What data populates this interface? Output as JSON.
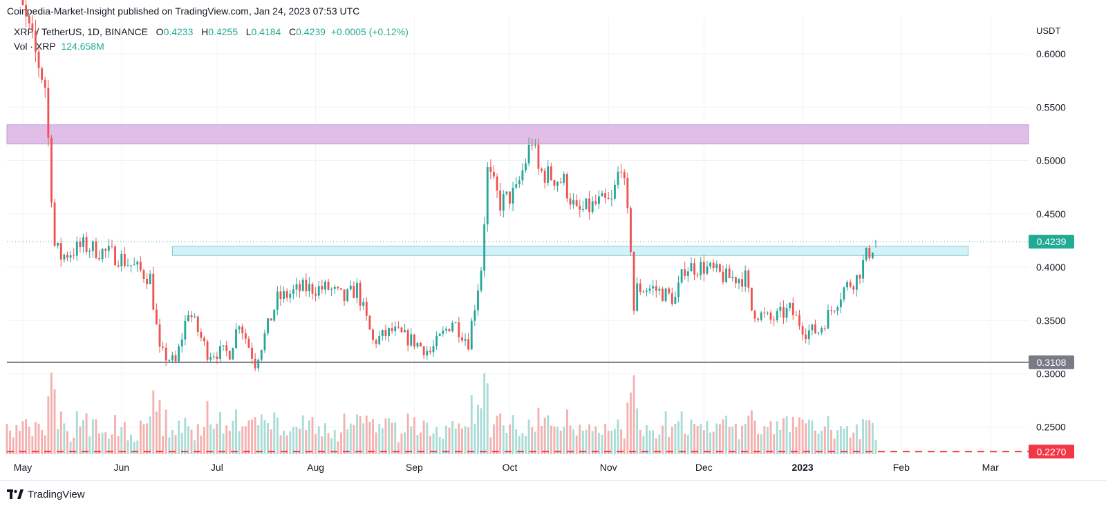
{
  "header": {
    "publisher": "Coinpedia-Market-Insight published on TradingView.com, Jan 24, 2023 07:53 UTC"
  },
  "legend": {
    "symbol": "XRP / TetherUS, 1D, BINANCE",
    "o_label": "O",
    "o_value": "0.4233",
    "h_label": "H",
    "h_value": "0.4255",
    "l_label": "L",
    "l_value": "0.4184",
    "c_label": "C",
    "c_value": "0.4239",
    "change": "+0.0005 (+0.12%)",
    "vol_label": "Vol · XRP",
    "vol_value": "124.658M"
  },
  "footer": {
    "brand": "TradingView",
    "logo_icon": "tradingview-logo-icon"
  },
  "colors": {
    "up": "#26a69a",
    "down": "#ef5350",
    "vol_up": "#a8dcd6",
    "vol_down": "#f5b0ae",
    "resistance_zone": "#e1bee7",
    "support_zone": "#d3f1f8",
    "support_line": "#787b86",
    "dashed_line": "#f23645",
    "grid": "#f0f3fa"
  },
  "chart_data": {
    "type": "candlestick",
    "title": "XRP / TetherUS, 1D, BINANCE",
    "y_unit": "USDT",
    "ylim": [
      0.222,
      0.635
    ],
    "y_ticks": [
      "0.6000",
      "0.5500",
      "0.5000",
      "0.4500",
      "0.4000",
      "0.3500",
      "0.3000",
      "0.2500"
    ],
    "x_range": [
      "2022-04-26",
      "2023-03-13"
    ],
    "x_ticks": [
      {
        "label": "May",
        "date": "2022-05-01"
      },
      {
        "label": "Jun",
        "date": "2022-06-01"
      },
      {
        "label": "Jul",
        "date": "2022-07-01"
      },
      {
        "label": "Aug",
        "date": "2022-08-01"
      },
      {
        "label": "Sep",
        "date": "2022-09-01"
      },
      {
        "label": "Oct",
        "date": "2022-10-01"
      },
      {
        "label": "Nov",
        "date": "2022-11-01"
      },
      {
        "label": "Dec",
        "date": "2022-12-01"
      },
      {
        "label": "2023",
        "date": "2023-01-01"
      },
      {
        "label": "Feb",
        "date": "2023-02-01"
      },
      {
        "label": "Mar",
        "date": "2023-03-01"
      }
    ],
    "last_price": {
      "value": 0.4239,
      "label": "0.4239"
    },
    "support_line": {
      "value": 0.3108,
      "label": "0.3108"
    },
    "dashed_line": {
      "value": 0.227,
      "label": "0.2270"
    },
    "resistance_zone": {
      "from": "2022-04-26",
      "to": "2023-03-13",
      "low": 0.5155,
      "high": 0.5335
    },
    "support_zone": {
      "from": "2022-06-17",
      "to": "2023-02-22",
      "low": 0.4108,
      "high": 0.4195
    },
    "anchors": [
      [
        "2022-04-26",
        0.69
      ],
      [
        "2022-05-03",
        0.62
      ],
      [
        "2022-05-08",
        0.57
      ],
      [
        "2022-05-11",
        0.42
      ],
      [
        "2022-05-13",
        0.41
      ],
      [
        "2022-05-20",
        0.42
      ],
      [
        "2022-05-31",
        0.41
      ],
      [
        "2022-06-05",
        0.4
      ],
      [
        "2022-06-10",
        0.39
      ],
      [
        "2022-06-13",
        0.32
      ],
      [
        "2022-06-18",
        0.31
      ],
      [
        "2022-06-22",
        0.36
      ],
      [
        "2022-06-28",
        0.32
      ],
      [
        "2022-07-05",
        0.32
      ],
      [
        "2022-07-08",
        0.35
      ],
      [
        "2022-07-13",
        0.31
      ],
      [
        "2022-07-20",
        0.37
      ],
      [
        "2022-07-28",
        0.38
      ],
      [
        "2022-08-05",
        0.38
      ],
      [
        "2022-08-10",
        0.37
      ],
      [
        "2022-08-14",
        0.38
      ],
      [
        "2022-08-19",
        0.33
      ],
      [
        "2022-08-25",
        0.34
      ],
      [
        "2022-09-01",
        0.33
      ],
      [
        "2022-09-06",
        0.32
      ],
      [
        "2022-09-13",
        0.35
      ],
      [
        "2022-09-18",
        0.33
      ],
      [
        "2022-09-22",
        0.4
      ],
      [
        "2022-09-24",
        0.49
      ],
      [
        "2022-09-28",
        0.46
      ],
      [
        "2022-10-03",
        0.47
      ],
      [
        "2022-10-08",
        0.52
      ],
      [
        "2022-10-10",
        0.49
      ],
      [
        "2022-10-18",
        0.48
      ],
      [
        "2022-10-22",
        0.45
      ],
      [
        "2022-10-29",
        0.46
      ],
      [
        "2022-11-02",
        0.46
      ],
      [
        "2022-11-05",
        0.5
      ],
      [
        "2022-11-08",
        0.42
      ],
      [
        "2022-11-09",
        0.36
      ],
      [
        "2022-11-10",
        0.38
      ],
      [
        "2022-11-15",
        0.38
      ],
      [
        "2022-11-22",
        0.37
      ],
      [
        "2022-11-25",
        0.4
      ],
      [
        "2022-12-01",
        0.4
      ],
      [
        "2022-12-08",
        0.39
      ],
      [
        "2022-12-14",
        0.39
      ],
      [
        "2022-12-16",
        0.36
      ],
      [
        "2022-12-22",
        0.35
      ],
      [
        "2022-12-28",
        0.36
      ],
      [
        "2023-01-02",
        0.34
      ],
      [
        "2023-01-06",
        0.34
      ],
      [
        "2023-01-10",
        0.36
      ],
      [
        "2023-01-14",
        0.38
      ],
      [
        "2023-01-18",
        0.39
      ],
      [
        "2023-01-21",
        0.41
      ],
      [
        "2023-01-24",
        0.4239
      ]
    ],
    "volume_axis_max_m": 1000
  }
}
